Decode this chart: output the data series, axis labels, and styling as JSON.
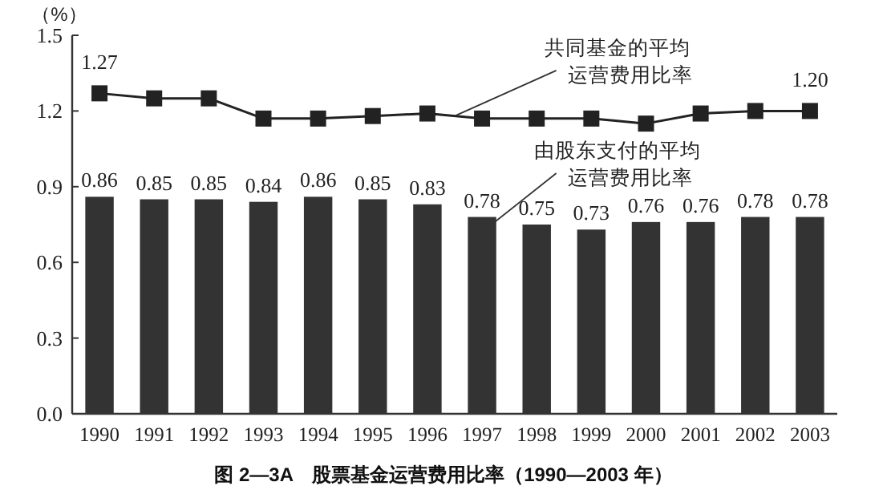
{
  "chart_data": {
    "type": "bar",
    "title": "图 2—3A　股票基金运营费用比率（1990—2003 年）",
    "ylabel": "（%）",
    "categories": [
      "1990",
      "1991",
      "1992",
      "1993",
      "1994",
      "1995",
      "1996",
      "1997",
      "1998",
      "1999",
      "2000",
      "2001",
      "2002",
      "2003"
    ],
    "ylim": [
      0,
      1.5
    ],
    "yticks": [
      {
        "value": 0,
        "label": "0.0"
      },
      {
        "value": 0.3,
        "label": "0.3"
      },
      {
        "value": 0.6,
        "label": "0.6"
      },
      {
        "value": 0.9,
        "label": "0.9"
      },
      {
        "value": 1.2,
        "label": "1.2"
      },
      {
        "value": 1.5,
        "label": "1.5"
      }
    ],
    "grid": false,
    "series": [
      {
        "name": "由股东支付的平均运营费用比率",
        "color": "#333333",
        "values": [
          0.86,
          0.85,
          0.85,
          0.84,
          0.86,
          0.85,
          0.83,
          0.78,
          0.75,
          0.73,
          0.76,
          0.76,
          0.78,
          0.78
        ],
        "value_labels": [
          "0.86",
          "0.85",
          "0.85",
          "0.84",
          "0.86",
          "0.85",
          "0.83",
          "0.78",
          "0.75",
          "0.73",
          "0.76",
          "0.76",
          "0.78",
          "0.78"
        ]
      },
      {
        "name": "共同基金的平均运营费用比率",
        "type": "line",
        "color": "#222222",
        "marker": "square",
        "values": [
          1.27,
          1.25,
          1.25,
          1.17,
          1.17,
          1.18,
          1.19,
          1.17,
          1.17,
          1.17,
          1.15,
          1.19,
          1.2,
          1.2
        ],
        "value_labels": [
          "1.27",
          null,
          null,
          null,
          null,
          null,
          null,
          null,
          null,
          null,
          null,
          null,
          null,
          "1.20"
        ]
      }
    ]
  }
}
